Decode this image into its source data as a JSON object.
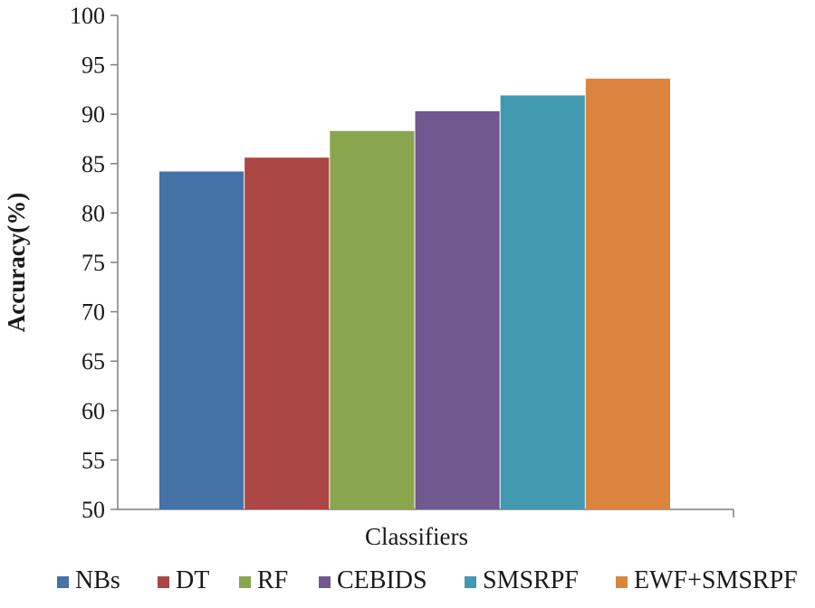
{
  "chart_data": {
    "type": "bar",
    "title": "",
    "xlabel": "Classifiers",
    "ylabel": "Accuracy(%)",
    "ylim": [
      50,
      100
    ],
    "yticks": [
      "50",
      "55",
      "60",
      "65",
      "70",
      "75",
      "80",
      "85",
      "90",
      "95",
      "100"
    ],
    "grid": false,
    "legend_position": "bottom",
    "series": [
      {
        "name": "NBs",
        "value": 84.2,
        "color": "#4572a7"
      },
      {
        "name": "DT",
        "value": 85.6,
        "color": "#aa4643"
      },
      {
        "name": "RF",
        "value": 88.3,
        "color": "#89a54e"
      },
      {
        "name": "CEBIDS",
        "value": 90.3,
        "color": "#71588f"
      },
      {
        "name": "SMSRPF",
        "value": 91.9,
        "color": "#4198af"
      },
      {
        "name": "EWF+SMSRPF",
        "value": 93.6,
        "color": "#db843d"
      }
    ]
  }
}
